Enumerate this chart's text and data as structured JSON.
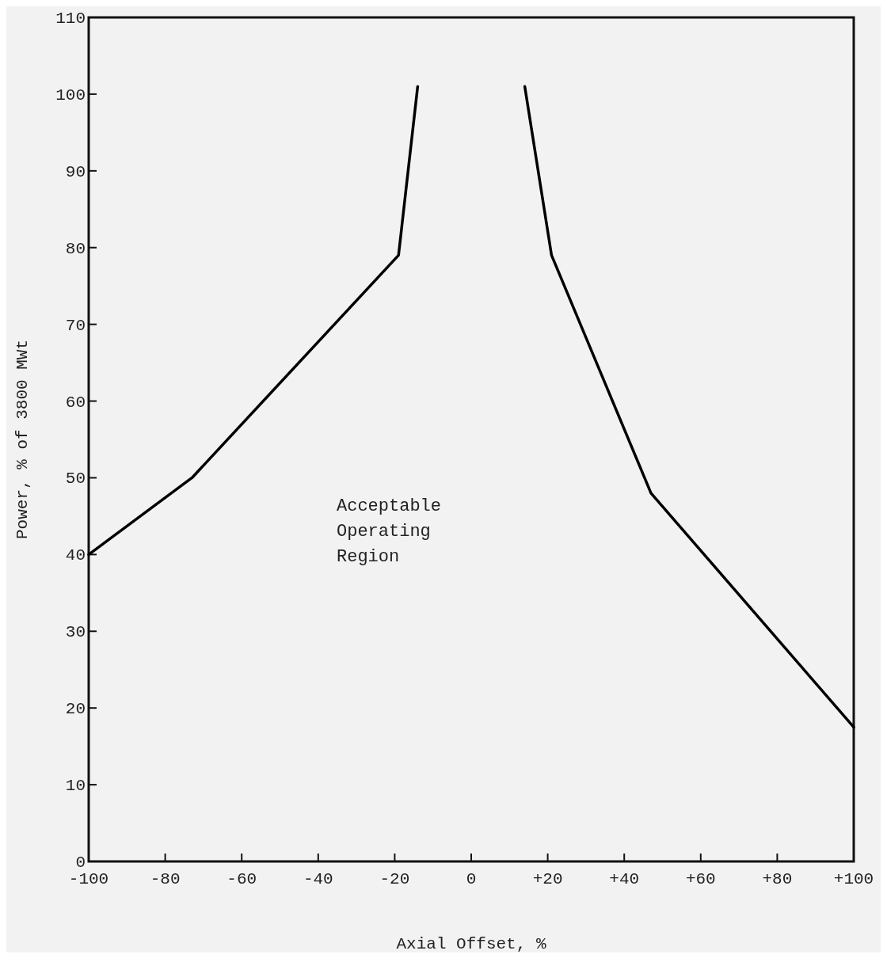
{
  "chart_data": {
    "type": "line",
    "xlabel": "Axial Offset, %",
    "ylabel": "Power, % of 3800 MWt",
    "series": [
      {
        "color": "#000000",
        "x": [
          -100,
          -73,
          -19,
          -14
        ],
        "values": [
          40,
          50,
          79,
          101
        ]
      },
      {
        "color": "#000000",
        "x": [
          14,
          21,
          47,
          100
        ],
        "values": [
          101,
          79,
          48,
          17.5
        ]
      }
    ],
    "xlim": [
      -100,
      100
    ],
    "xticks": [
      -100,
      -80,
      -60,
      -40,
      -20,
      0,
      {
        "value": 20,
        "label": "+20"
      },
      {
        "value": 40,
        "label": "+40"
      },
      {
        "value": 60,
        "label": "+60"
      },
      {
        "value": 80,
        "label": "+80"
      },
      {
        "value": 100,
        "label": "+100"
      }
    ],
    "ylim": [
      0,
      110
    ],
    "yticks": [
      0,
      10,
      20,
      30,
      40,
      50,
      60,
      70,
      80,
      90,
      100,
      110
    ],
    "marker": "none",
    "line_style": "solid",
    "annotations": [
      "Acceptable\nOperating\nRegion"
    ]
  }
}
